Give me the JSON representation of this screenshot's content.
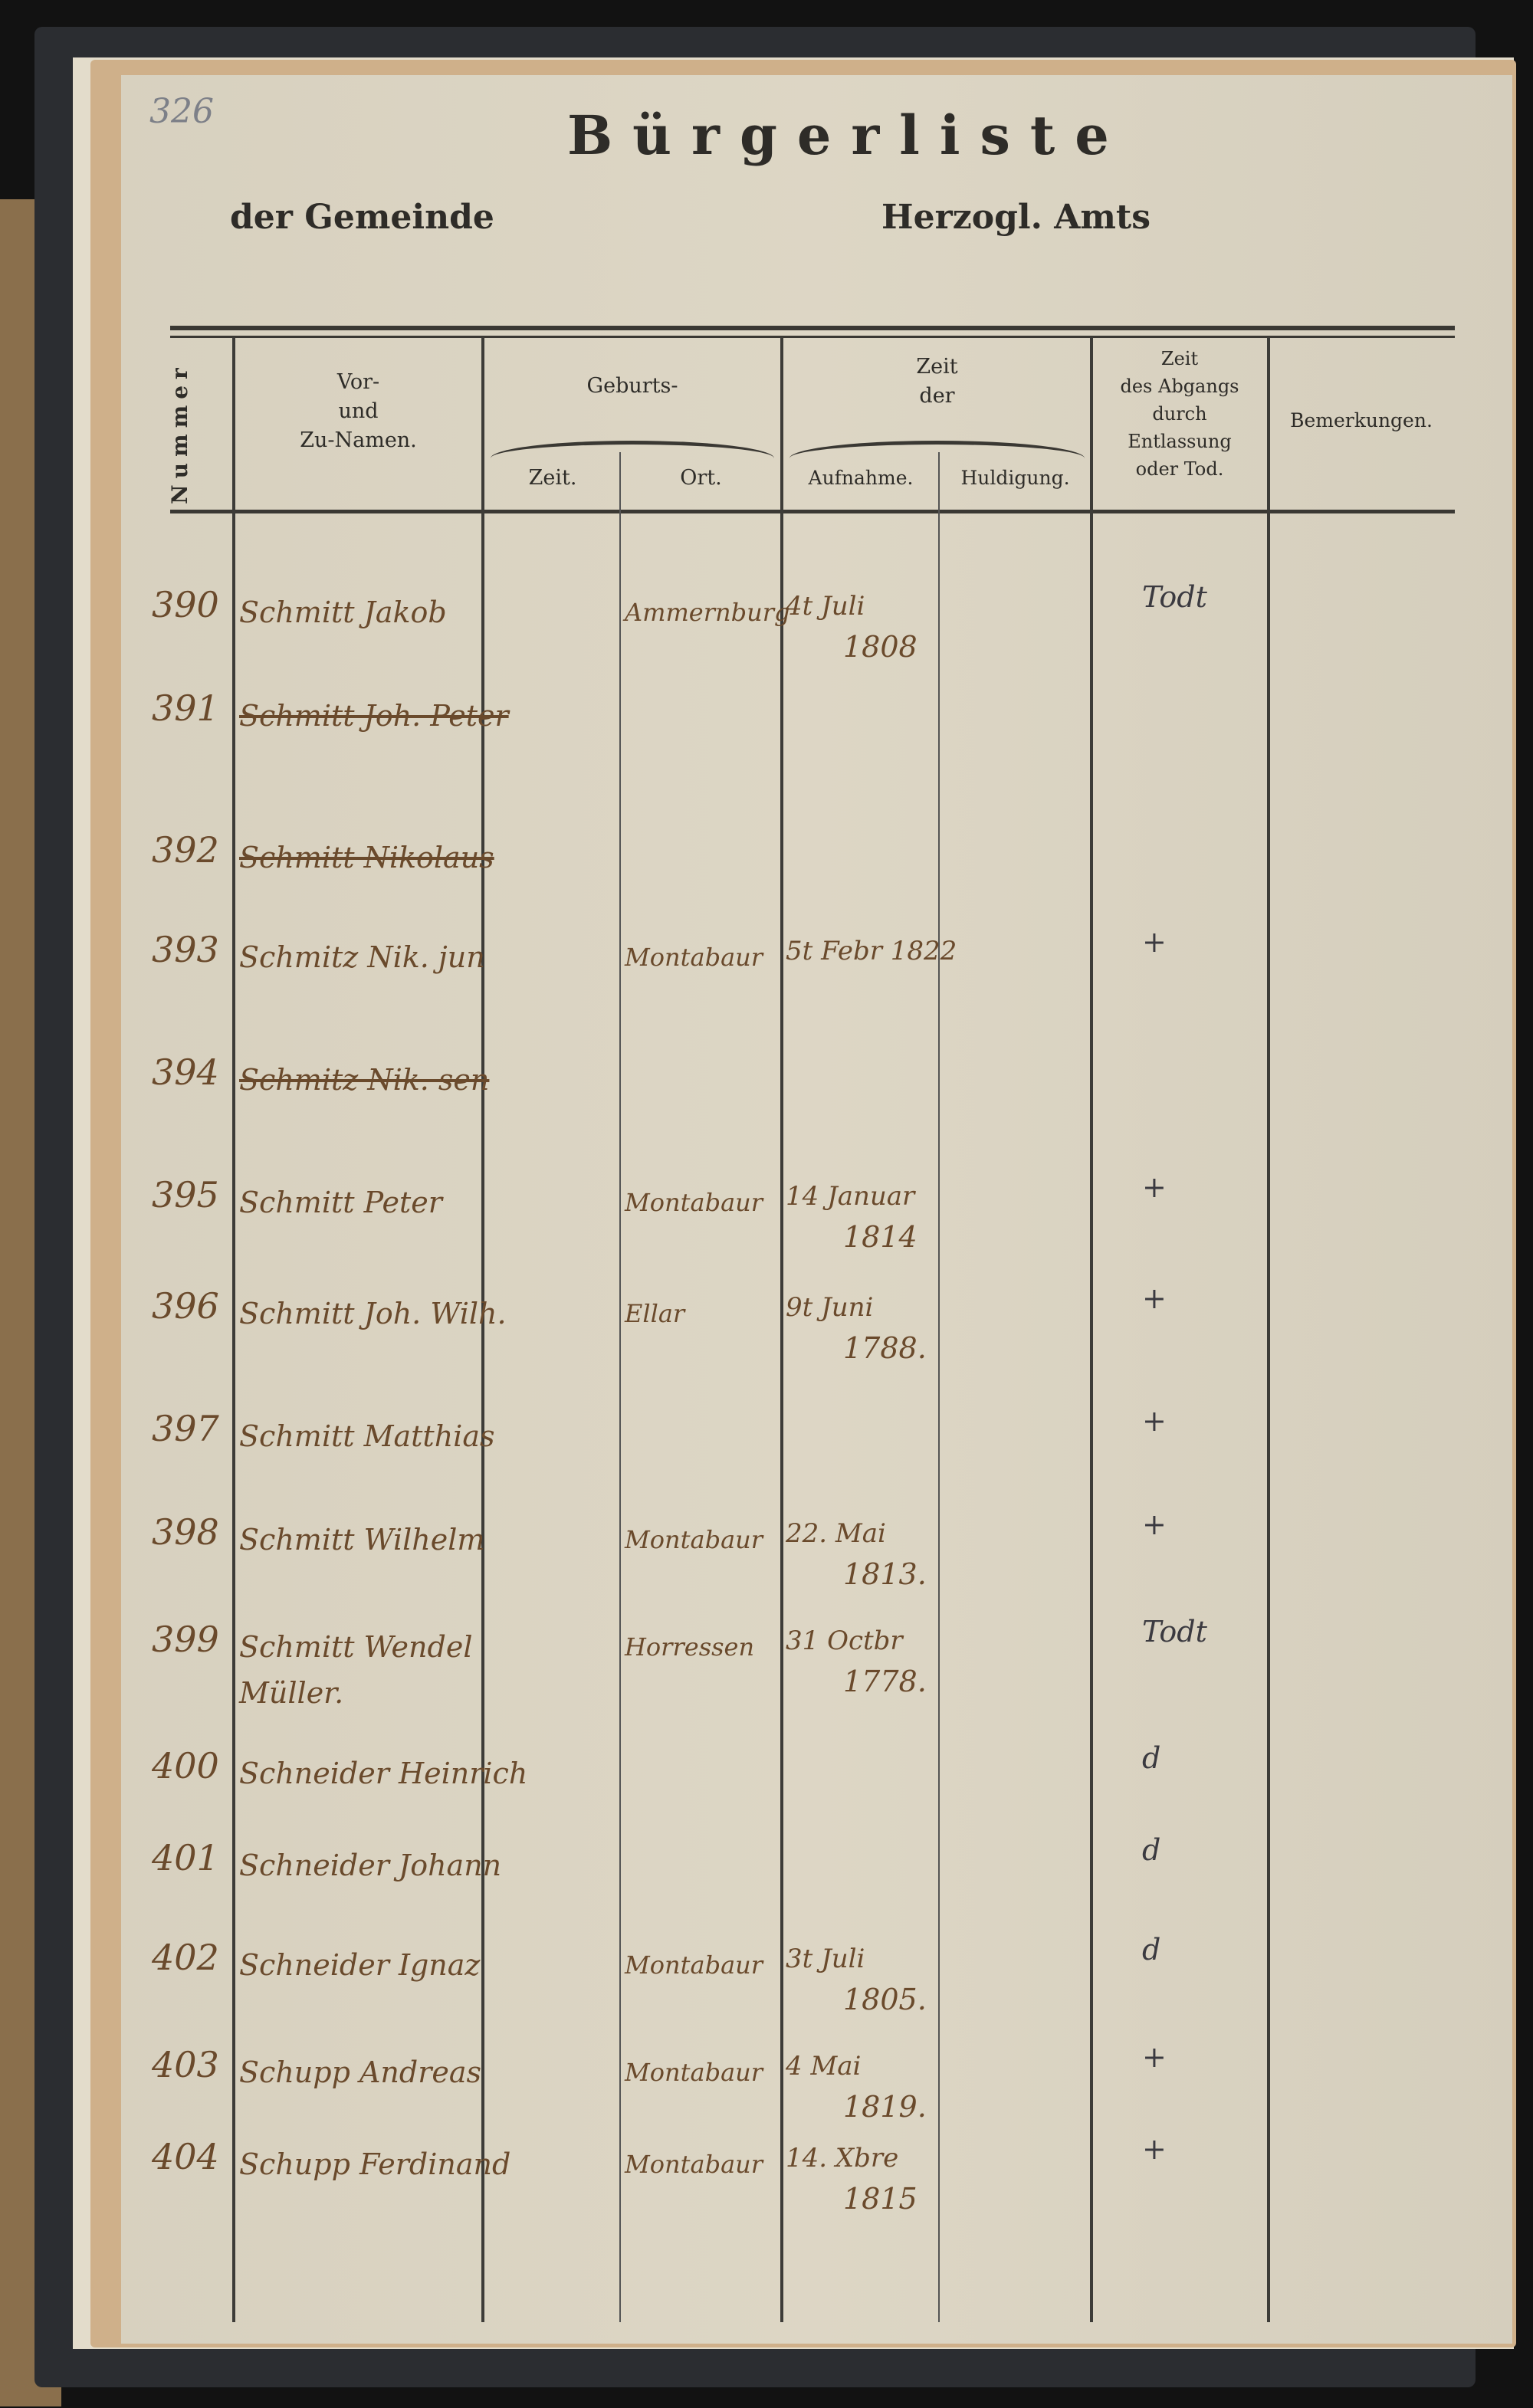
{
  "page_number": "326",
  "header": {
    "title": "Bürgerliste",
    "gemeinde_label": "der Gemeinde",
    "amt_label": "Herzogl. Amts"
  },
  "columns": {
    "nummer": "Nummer",
    "name": [
      "Vor-",
      "und",
      "Zu-Namen."
    ],
    "geburts": "Geburts-",
    "geburt_zeit": "Zeit.",
    "geburt_ort": "Ort.",
    "zeit_der": [
      "Zeit",
      "der"
    ],
    "aufnahme": "Aufnahme.",
    "huldigung": "Huldigung.",
    "abgang": [
      "Zeit",
      "des Abgangs",
      "durch",
      "Entlassung",
      "oder Tod."
    ],
    "bemerkungen": "Bemerkungen."
  },
  "entries": [
    {
      "nr": "390",
      "name": "Schmitt Jakob",
      "struck": false,
      "ort": "Ammernburg",
      "aufnahme": [
        "4t Juli",
        "1808"
      ],
      "abgang": "Todt"
    },
    {
      "nr": "391",
      "name": "Schmitt Joh. Peter",
      "struck": true,
      "ort": "",
      "aufnahme": [
        "",
        ""
      ],
      "abgang": ""
    },
    {
      "nr": "392",
      "name": "Schmitt Nikolaus",
      "struck": true,
      "ort": "",
      "aufnahme": [
        "",
        ""
      ],
      "abgang": ""
    },
    {
      "nr": "393",
      "name": "Schmitz Nik. jun",
      "struck": false,
      "ort": "Montabaur",
      "aufnahme": [
        "5t Febr 1822",
        ""
      ],
      "abgang": "+"
    },
    {
      "nr": "394",
      "name": "Schmitz Nik. sen",
      "struck": true,
      "ort": "",
      "aufnahme": [
        "",
        ""
      ],
      "abgang": ""
    },
    {
      "nr": "395",
      "name": "Schmitt Peter",
      "struck": false,
      "ort": "Montabaur",
      "aufnahme": [
        "14 Januar",
        "1814"
      ],
      "abgang": "+"
    },
    {
      "nr": "396",
      "name": "Schmitt Joh. Wilh.",
      "struck": false,
      "ort": "Ellar",
      "aufnahme": [
        "9t Juni",
        "1788."
      ],
      "abgang": "+"
    },
    {
      "nr": "397",
      "name": "Schmitt Matthias",
      "struck": false,
      "ort": "",
      "aufnahme": [
        "",
        ""
      ],
      "abgang": "+"
    },
    {
      "nr": "398",
      "name": "Schmitt Wilhelm",
      "struck": false,
      "ort": "Montabaur",
      "aufnahme": [
        "22. Mai",
        "1813."
      ],
      "abgang": "+"
    },
    {
      "nr": "399",
      "name": "Schmitt Wendel",
      "name2": "Müller.",
      "struck": false,
      "ort": "Horressen",
      "aufnahme": [
        "31 Octbr",
        "1778."
      ],
      "abgang": "Todt"
    },
    {
      "nr": "400",
      "name": "Schneider Heinrich",
      "struck": false,
      "ort": "",
      "aufnahme": [
        "",
        ""
      ],
      "abgang": "d"
    },
    {
      "nr": "401",
      "name": "Schneider Johann",
      "struck": false,
      "ort": "",
      "aufnahme": [
        "",
        ""
      ],
      "abgang": "d"
    },
    {
      "nr": "402",
      "name": "Schneider Ignaz",
      "struck": false,
      "ort": "Montabaur",
      "aufnahme": [
        "3t Juli",
        "1805."
      ],
      "abgang": "d"
    },
    {
      "nr": "403",
      "name": "Schupp Andreas",
      "struck": false,
      "ort": "Montabaur",
      "aufnahme": [
        "4 Mai",
        "1819."
      ],
      "abgang": "+"
    },
    {
      "nr": "404",
      "name": "Schupp Ferdinand",
      "struck": false,
      "ort": "Montabaur",
      "aufnahme": [
        "14. Xbre",
        "1815"
      ],
      "abgang": "+"
    }
  ],
  "colors": {
    "paper": "#dcd5c3",
    "ink_print": "#2e2c28",
    "ink_brown": "#6a4a2c"
  }
}
